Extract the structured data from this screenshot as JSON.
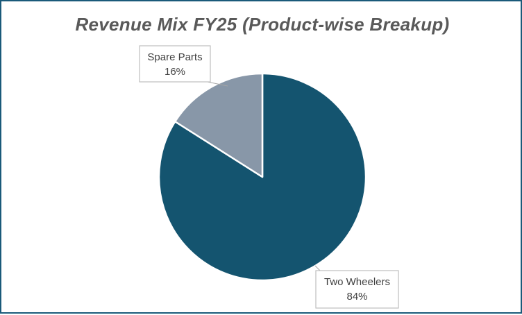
{
  "chart_data": {
    "type": "pie",
    "title": "Revenue Mix FY25 (Product-wise Breakup)",
    "slices": [
      {
        "label": "Two Wheelers",
        "value": 84,
        "value_label": "84%",
        "color": "#14546f"
      },
      {
        "label": "Spare Parts",
        "value": 16,
        "value_label": "16%",
        "color": "#8897a8"
      }
    ],
    "legend": "none",
    "data_labels": "callouts"
  },
  "colors": {
    "frame_border": "#1a5a7a",
    "title_text": "#595959",
    "slice_separator": "#ffffff",
    "callout_border": "#bfbfbf"
  }
}
